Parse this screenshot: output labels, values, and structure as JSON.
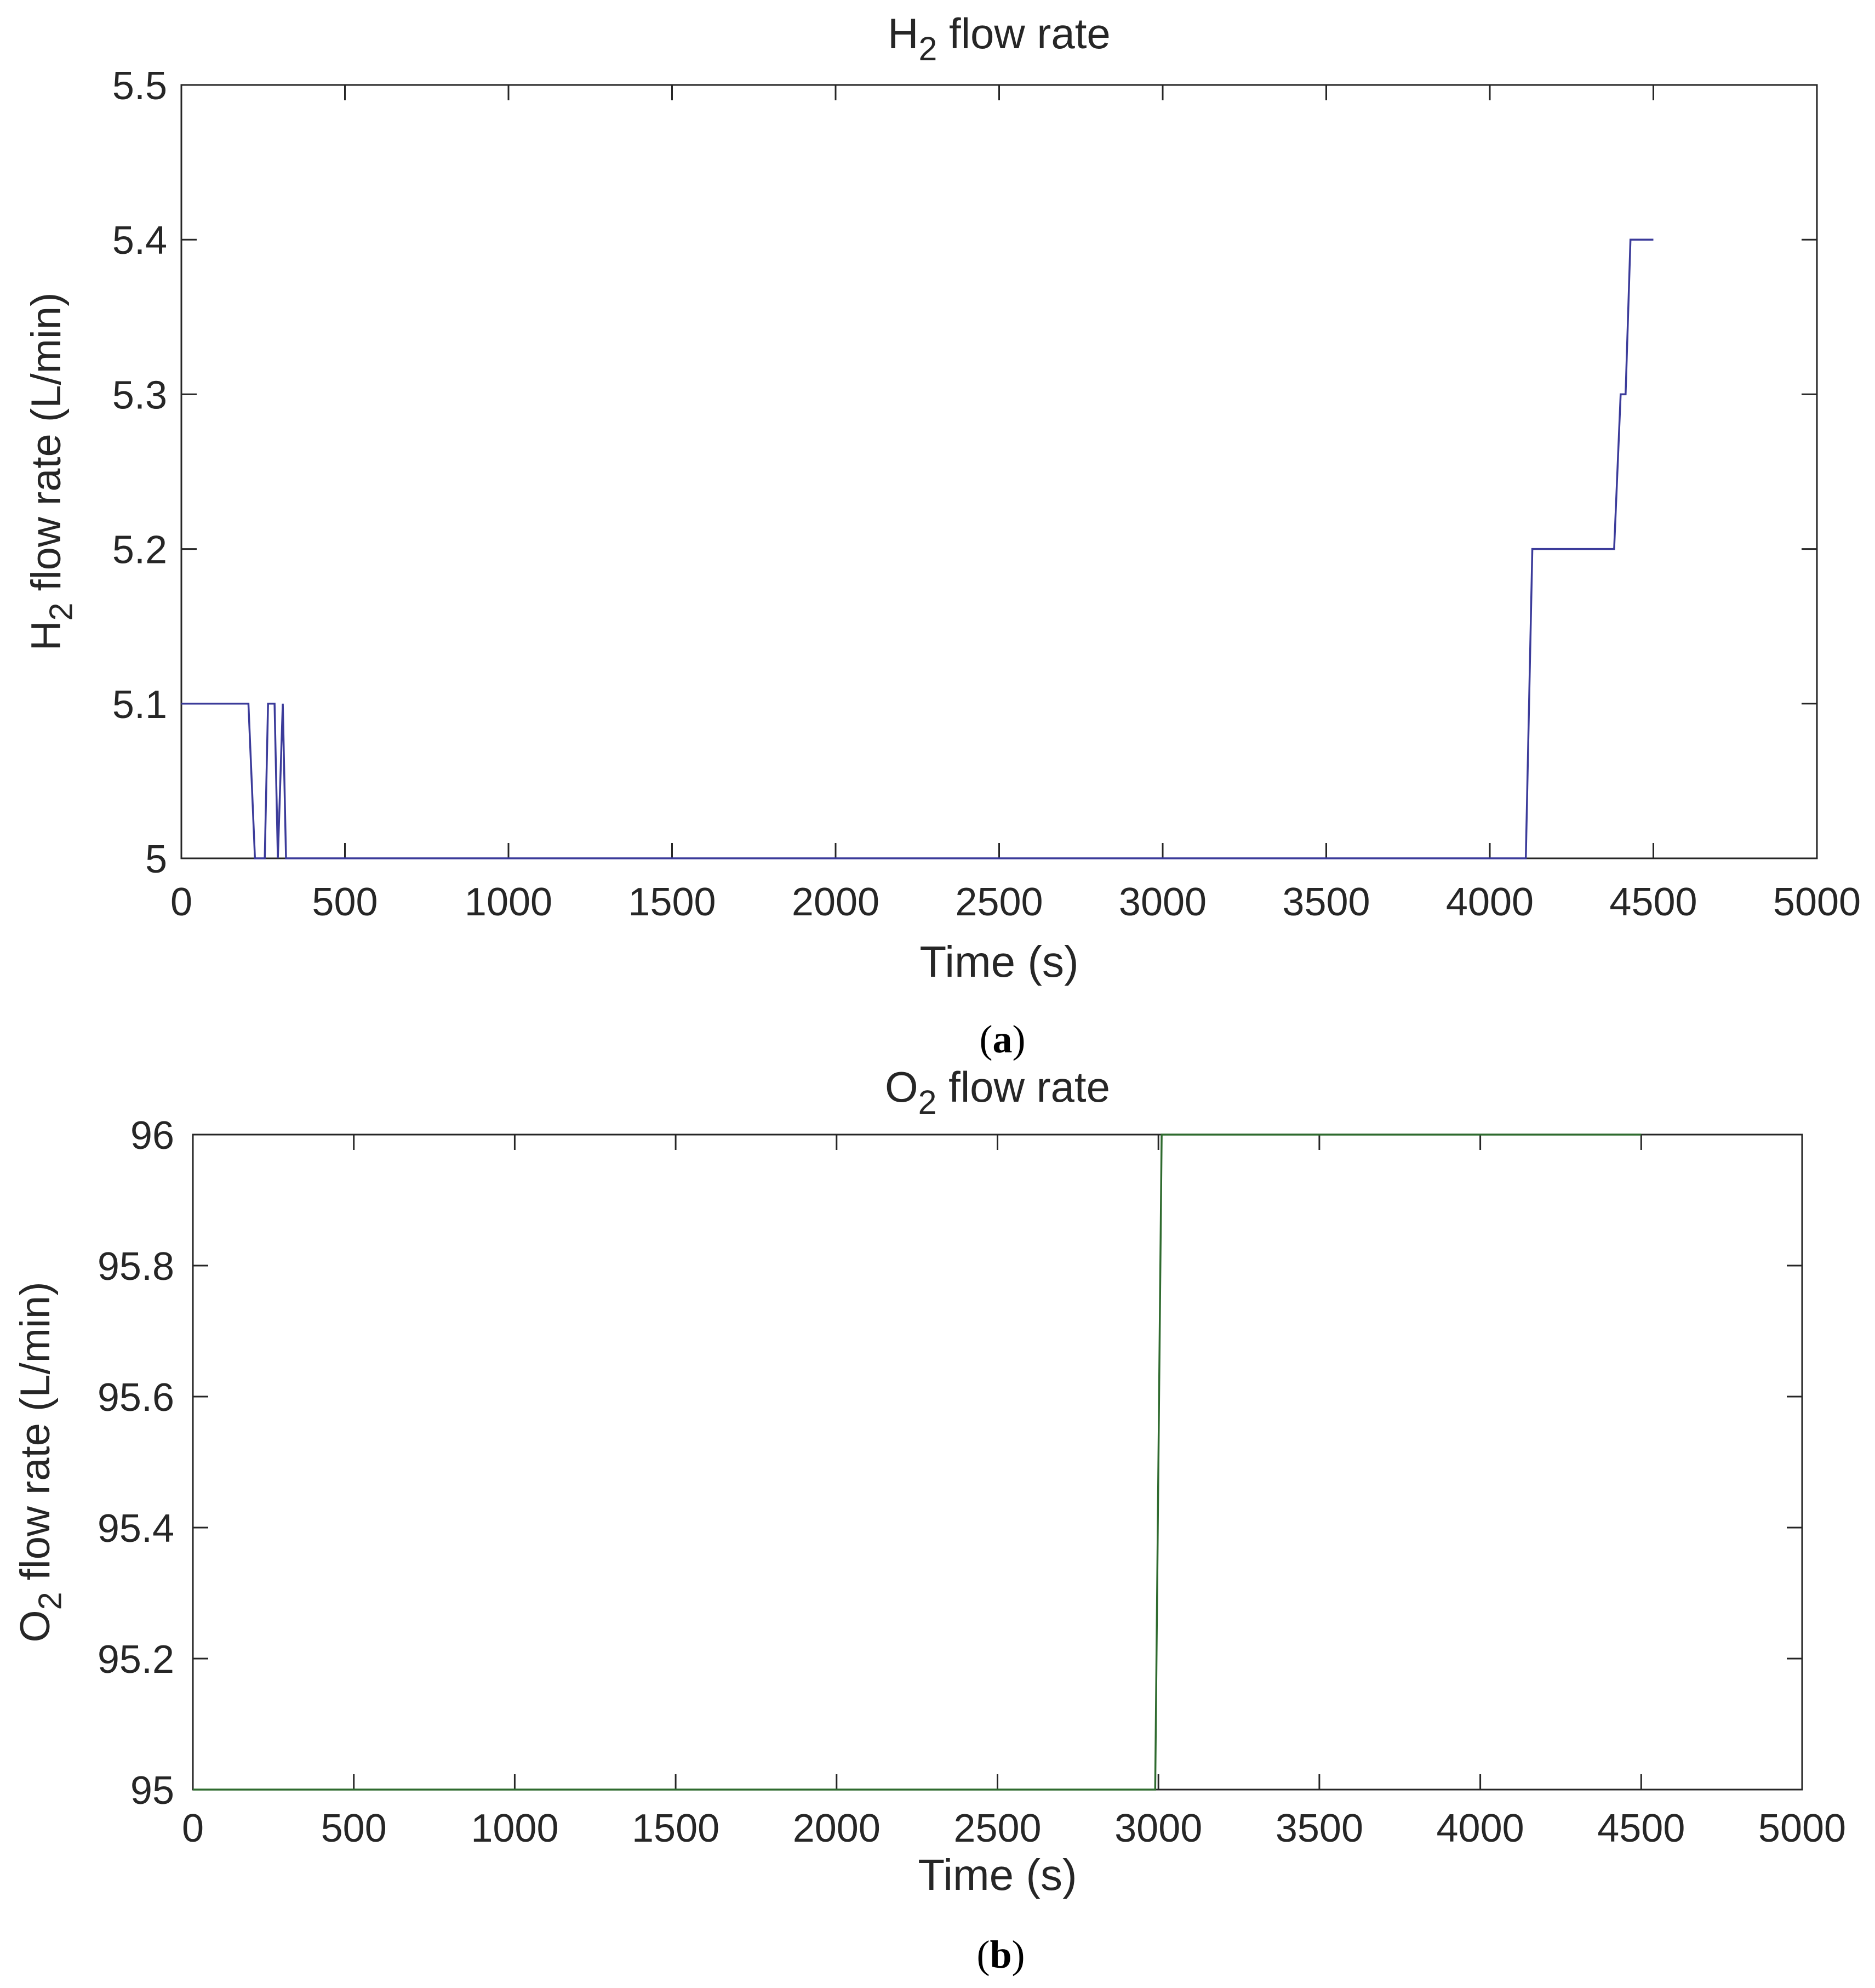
{
  "chart_data": [
    {
      "type": "line",
      "caption_letter": "a",
      "title": {
        "pre": "H",
        "sub": "2",
        "post": " flow rate"
      },
      "xlabel": "Time (s)",
      "ylabel": {
        "pre": "H",
        "sub": "2",
        "post": " flow rate (L/min)"
      },
      "xlim": [
        0,
        5000
      ],
      "ylim": [
        5,
        5.5
      ],
      "xticks": [
        "0",
        "500",
        "1000",
        "1500",
        "2000",
        "2500",
        "3000",
        "3500",
        "4000",
        "4500",
        "5000"
      ],
      "yticks": [
        "5",
        "5.1",
        "5.2",
        "5.3",
        "5.4",
        "5.5"
      ],
      "grid": false,
      "color": "#3b3b9a",
      "series": [
        {
          "x": [
            0,
            205,
            225,
            255,
            265,
            285,
            295,
            310,
            320,
            335,
            4110,
            4130,
            4380,
            4400,
            4415,
            4430,
            4440,
            4500
          ],
          "y": [
            5.1,
            5.1,
            5.0,
            5.0,
            5.1,
            5.1,
            5.0,
            5.1,
            5.0,
            5.0,
            5.0,
            5.2,
            5.2,
            5.3,
            5.3,
            5.4,
            5.4,
            5.4
          ]
        }
      ]
    },
    {
      "type": "line",
      "caption_letter": "b",
      "title": {
        "pre": "O",
        "sub": "2",
        "post": " flow rate"
      },
      "xlabel": "Time (s)",
      "ylabel": {
        "pre": "O",
        "sub": "2",
        "post": " flow rate (L/min)"
      },
      "xlim": [
        0,
        5000
      ],
      "ylim": [
        95,
        96
      ],
      "xticks": [
        "0",
        "500",
        "1000",
        "1500",
        "2000",
        "2500",
        "3000",
        "3500",
        "4000",
        "4500",
        "5000"
      ],
      "yticks": [
        "95",
        "95.2",
        "95.4",
        "95.6",
        "95.8",
        "96"
      ],
      "grid": false,
      "color": "#2f6b2f",
      "series": [
        {
          "x": [
            0,
            2990,
            3010,
            4500
          ],
          "y": [
            95,
            95,
            96,
            96
          ]
        }
      ]
    }
  ]
}
